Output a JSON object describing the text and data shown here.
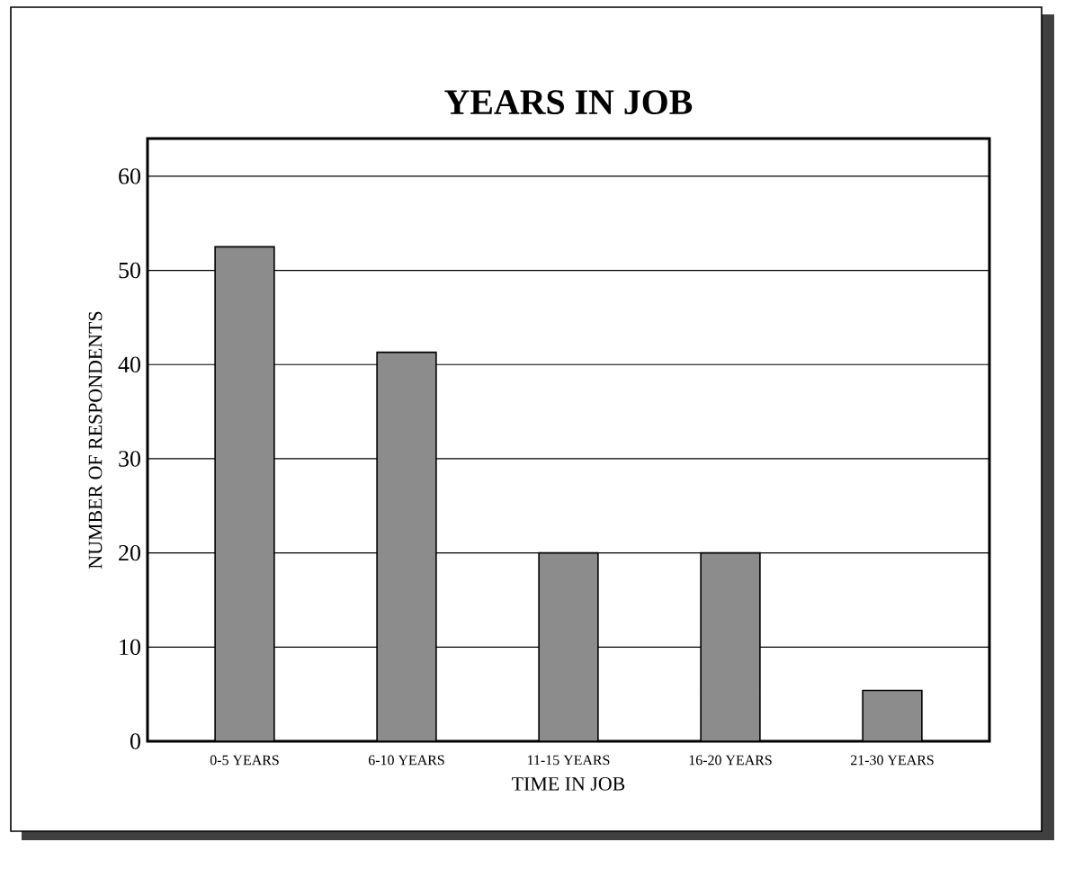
{
  "chart_data": {
    "type": "bar",
    "title": "YEARS IN JOB",
    "xlabel": "TIME IN JOB",
    "ylabel": "NUMBER OF RESPONDENTS",
    "categories": [
      "0-5 YEARS",
      "6-10 YEARS",
      "11-15 YEARS",
      "16-20 YEARS",
      "21-30 YEARS"
    ],
    "values": [
      52.5,
      41.3,
      20,
      20,
      5.4
    ],
    "color": "#8c8c8c",
    "ylim": [
      0,
      64
    ],
    "yticks": [
      0,
      10,
      20,
      30,
      40,
      50,
      60
    ],
    "grid": "y"
  }
}
